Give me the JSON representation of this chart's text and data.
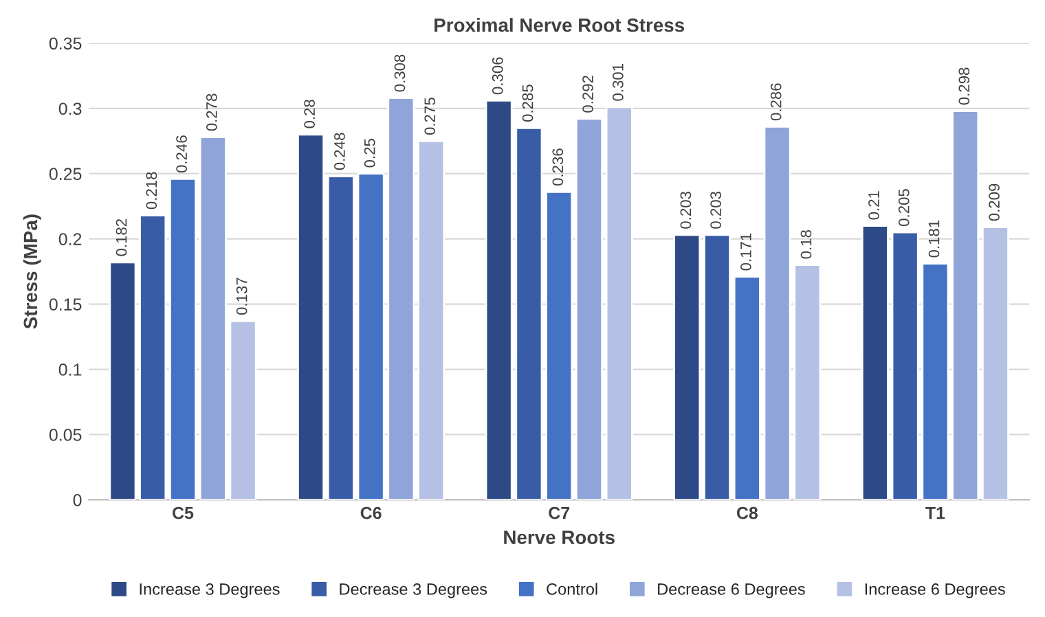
{
  "chart_data": {
    "type": "bar",
    "title": "Proximal Nerve Root Stress",
    "xlabel": "Nerve Roots",
    "ylabel": "Stress (MPa)",
    "categories": [
      "C5",
      "C6",
      "C7",
      "C8",
      "T1"
    ],
    "series": [
      {
        "name": "Increase 3 Degrees",
        "color": "#2e4a86",
        "values": [
          0.182,
          0.28,
          0.306,
          0.203,
          0.21
        ]
      },
      {
        "name": "Decrease 3 Degrees",
        "color": "#395ca6",
        "values": [
          0.218,
          0.248,
          0.285,
          0.203,
          0.205
        ]
      },
      {
        "name": "Control",
        "color": "#4472c4",
        "values": [
          0.246,
          0.25,
          0.236,
          0.171,
          0.181
        ]
      },
      {
        "name": "Decrease 6 Degrees",
        "color": "#8fa5d9",
        "values": [
          0.278,
          0.308,
          0.292,
          0.286,
          0.298
        ]
      },
      {
        "name": "Increase 6 Degrees",
        "color": "#b4c1e5",
        "values": [
          0.137,
          0.275,
          0.301,
          0.18,
          0.209
        ]
      }
    ],
    "ylim": [
      0,
      0.35
    ],
    "yticks": [
      {
        "value": 0,
        "label": "0"
      },
      0.05,
      0.1,
      0.15,
      0.2,
      0.25,
      0.3,
      0.35
    ],
    "grid": "y",
    "legend": "bottom",
    "data_labels": true
  }
}
